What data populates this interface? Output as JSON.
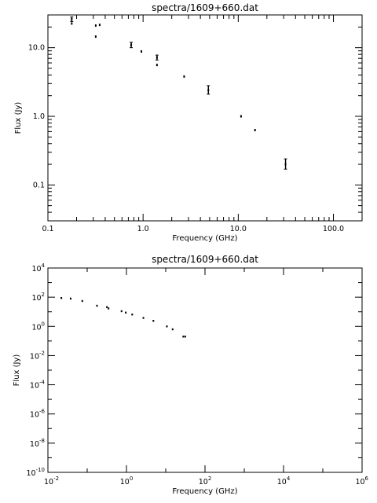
{
  "chart_data": [
    {
      "type": "scatter",
      "title": "spectra/1609+660.dat",
      "xlabel": "Frequency (GHz)",
      "ylabel": "Flux (Jy)",
      "xscale": "log",
      "yscale": "log",
      "xlim": [
        0.1,
        200
      ],
      "ylim": [
        0.03,
        30
      ],
      "xticks": [
        0.1,
        1.0,
        10.0,
        100.0
      ],
      "xtick_labels": [
        "0.1",
        "1.0",
        "10.0",
        "100.0"
      ],
      "yticks": [
        0.1,
        1.0,
        10.0
      ],
      "ytick_labels": [
        "0.1",
        "1.0",
        "10.0"
      ],
      "grid": false,
      "points": [
        {
          "x": 0.178,
          "y": 26.0,
          "yerr_lo": 24.0,
          "yerr_hi": 28.0
        },
        {
          "x": 0.178,
          "y": 22.5
        },
        {
          "x": 0.318,
          "y": 21.0
        },
        {
          "x": 0.35,
          "y": 21.5
        },
        {
          "x": 0.318,
          "y": 14.5
        },
        {
          "x": 0.75,
          "y": 11.0,
          "yerr_lo": 10.0,
          "yerr_hi": 12.0
        },
        {
          "x": 0.96,
          "y": 8.8
        },
        {
          "x": 1.4,
          "y": 7.2,
          "yerr_lo": 6.6,
          "yerr_hi": 7.8
        },
        {
          "x": 1.4,
          "y": 5.6
        },
        {
          "x": 2.7,
          "y": 3.8
        },
        {
          "x": 4.85,
          "y": 2.4,
          "yerr_lo": 2.1,
          "yerr_hi": 2.8
        },
        {
          "x": 10.7,
          "y": 1.0
        },
        {
          "x": 15.0,
          "y": 0.63
        },
        {
          "x": 31.4,
          "y": 0.2,
          "yerr_lo": 0.17,
          "yerr_hi": 0.24
        }
      ]
    },
    {
      "type": "scatter",
      "title": "spectra/1609+660.dat",
      "xlabel": "Frequency (GHz)",
      "ylabel": "Flux (Jy)",
      "xscale": "log",
      "yscale": "log",
      "xlim_exp": [
        -2,
        6
      ],
      "ylim_exp": [
        -10,
        4
      ],
      "xtick_exps": [
        -2,
        0,
        2,
        4,
        6
      ],
      "ytick_exps": [
        -10,
        -8,
        -6,
        -4,
        -2,
        0,
        2,
        4
      ],
      "tick_base": "10",
      "grid": false,
      "points": [
        {
          "x": 0.022,
          "y": 88
        },
        {
          "x": 0.038,
          "y": 80
        },
        {
          "x": 0.075,
          "y": 55
        },
        {
          "x": 0.178,
          "y": 26
        },
        {
          "x": 0.318,
          "y": 21
        },
        {
          "x": 0.35,
          "y": 17
        },
        {
          "x": 0.75,
          "y": 11
        },
        {
          "x": 0.96,
          "y": 8.8
        },
        {
          "x": 1.4,
          "y": 6.5
        },
        {
          "x": 2.7,
          "y": 3.8
        },
        {
          "x": 4.85,
          "y": 2.4
        },
        {
          "x": 10.7,
          "y": 1.0
        },
        {
          "x": 15.0,
          "y": 0.63
        },
        {
          "x": 31.4,
          "y": 0.2
        },
        {
          "x": 28.0,
          "y": 0.2
        }
      ]
    }
  ]
}
